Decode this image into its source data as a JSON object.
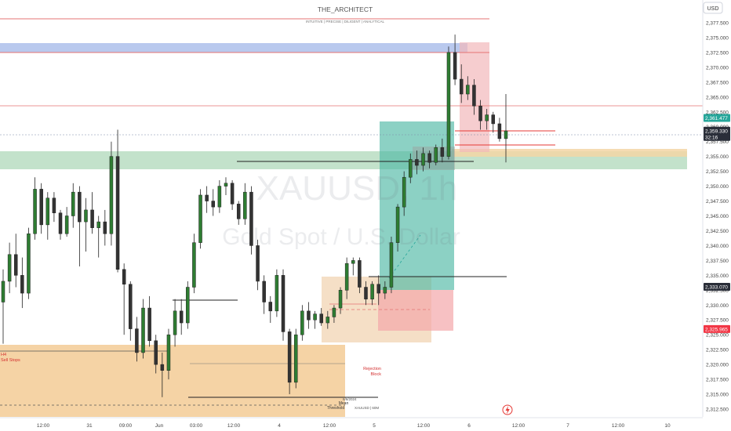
{
  "header": {
    "title": "THE_ARCHITECT",
    "subtitle": "INTUITIVE | PRECISE | DILIGENT | ANALYTICAL",
    "currency_label": "USD"
  },
  "watermark": {
    "symbol": "XAUUSD, 1h",
    "description": "Gold Spot / U.S. Dollar"
  },
  "chart_data": {
    "type": "candlestick",
    "symbol": "XAUUSD",
    "timeframe": "1h",
    "ylim": [
      2311.0,
      2381.0
    ],
    "y_ticks": [
      2312.5,
      2315.0,
      2317.5,
      2320.0,
      2322.5,
      2325.0,
      2327.5,
      2330.0,
      2332.5,
      2335.0,
      2337.5,
      2340.0,
      2342.5,
      2345.0,
      2347.5,
      2350.0,
      2352.5,
      2355.0,
      2357.5,
      2360.0,
      2362.5,
      2365.0,
      2367.5,
      2370.0,
      2372.5,
      2375.0,
      2377.5
    ],
    "y_tick_labels": [
      "2,312.500",
      "2,315.000",
      "2,317.500",
      "2,320.000",
      "2,322.500",
      "2,325.000",
      "2,327.500",
      "2,330.000",
      "2,332.500",
      "2,335.000",
      "2,337.500",
      "2,340.000",
      "2,342.500",
      "2,345.000",
      "2,347.500",
      "2,350.000",
      "2,352.500",
      "2,355.000",
      "2,357.500",
      "2,360.000",
      "2,362.500",
      "2,365.000",
      "2,367.500",
      "2,370.000",
      "2,372.500",
      "2,375.000",
      "2,377.500"
    ],
    "x_labels": [
      "12:00",
      "31",
      "09:00",
      "Jun",
      "03:00",
      "12:00",
      "4",
      "12:00",
      "5",
      "12:00",
      "6",
      "12:00",
      "7",
      "12:00",
      "10"
    ],
    "price_tags": [
      {
        "value": 2361.477,
        "label": "2,361.477",
        "color": "#26a69a"
      },
      {
        "value": 2359.33,
        "label": "2,359.330",
        "sub": "32:16",
        "color": "#2a2e39"
      },
      {
        "value": 2333.07,
        "label": "2,333.070",
        "color": "#2a2e39"
      },
      {
        "value": 2325.965,
        "label": "2,325.965",
        "color": "#f23645"
      }
    ],
    "annotations": [
      "H4",
      "Sell Stops",
      "Rejection",
      "Block",
      "6/6/2024",
      "Mean",
      "Threshold",
      "XAUUSD | 60M"
    ],
    "colors": {
      "up": "#26a69a",
      "down": "#333333",
      "alt_up": "#2e7d32"
    },
    "candles": [
      {
        "o": 2330.5,
        "h": 2336.0,
        "l": 2323.5,
        "c": 2334.0
      },
      {
        "o": 2334.0,
        "h": 2340.5,
        "l": 2332.0,
        "c": 2338.5
      },
      {
        "o": 2338.5,
        "h": 2342.0,
        "l": 2333.0,
        "c": 2335.0
      },
      {
        "o": 2335.0,
        "h": 2338.0,
        "l": 2329.5,
        "c": 2332.0
      },
      {
        "o": 2332.0,
        "h": 2343.0,
        "l": 2331.0,
        "c": 2342.0
      },
      {
        "o": 2342.0,
        "h": 2351.5,
        "l": 2341.0,
        "c": 2349.5
      },
      {
        "o": 2349.5,
        "h": 2350.5,
        "l": 2342.0,
        "c": 2343.5
      },
      {
        "o": 2343.5,
        "h": 2349.0,
        "l": 2341.0,
        "c": 2348.0
      },
      {
        "o": 2348.0,
        "h": 2349.0,
        "l": 2344.0,
        "c": 2345.5
      },
      {
        "o": 2345.5,
        "h": 2346.0,
        "l": 2341.0,
        "c": 2342.0
      },
      {
        "o": 2342.0,
        "h": 2346.5,
        "l": 2341.5,
        "c": 2345.0
      },
      {
        "o": 2345.0,
        "h": 2350.5,
        "l": 2343.0,
        "c": 2349.0
      },
      {
        "o": 2349.0,
        "h": 2350.0,
        "l": 2336.5,
        "c": 2344.0
      },
      {
        "o": 2344.0,
        "h": 2348.0,
        "l": 2339.0,
        "c": 2346.0
      },
      {
        "o": 2346.0,
        "h": 2349.0,
        "l": 2342.0,
        "c": 2343.0
      },
      {
        "o": 2343.0,
        "h": 2345.0,
        "l": 2338.0,
        "c": 2344.0
      },
      {
        "o": 2344.0,
        "h": 2346.0,
        "l": 2340.0,
        "c": 2342.0
      },
      {
        "o": 2342.0,
        "h": 2357.5,
        "l": 2340.0,
        "c": 2355.0
      },
      {
        "o": 2355.0,
        "h": 2359.5,
        "l": 2335.5,
        "c": 2336.0
      },
      {
        "o": 2336.0,
        "h": 2337.0,
        "l": 2325.0,
        "c": 2333.5
      },
      {
        "o": 2333.5,
        "h": 2334.0,
        "l": 2324.0,
        "c": 2326.0
      },
      {
        "o": 2326.0,
        "h": 2328.0,
        "l": 2320.5,
        "c": 2322.0
      },
      {
        "o": 2322.0,
        "h": 2331.0,
        "l": 2321.0,
        "c": 2329.5
      },
      {
        "o": 2329.5,
        "h": 2331.5,
        "l": 2323.0,
        "c": 2324.0
      },
      {
        "o": 2324.0,
        "h": 2325.0,
        "l": 2318.5,
        "c": 2320.0
      },
      {
        "o": 2320.0,
        "h": 2322.0,
        "l": 2314.5,
        "c": 2319.0
      },
      {
        "o": 2319.0,
        "h": 2326.0,
        "l": 2317.5,
        "c": 2325.0
      },
      {
        "o": 2325.0,
        "h": 2331.0,
        "l": 2323.0,
        "c": 2329.0
      },
      {
        "o": 2329.0,
        "h": 2331.0,
        "l": 2325.0,
        "c": 2327.0
      },
      {
        "o": 2327.0,
        "h": 2334.0,
        "l": 2326.0,
        "c": 2333.0
      },
      {
        "o": 2333.0,
        "h": 2342.0,
        "l": 2332.0,
        "c": 2340.5
      },
      {
        "o": 2340.5,
        "h": 2349.5,
        "l": 2339.5,
        "c": 2348.5
      },
      {
        "o": 2348.5,
        "h": 2350.0,
        "l": 2345.5,
        "c": 2347.5
      },
      {
        "o": 2347.5,
        "h": 2349.5,
        "l": 2345.0,
        "c": 2346.5
      },
      {
        "o": 2346.5,
        "h": 2351.0,
        "l": 2345.5,
        "c": 2350.0
      },
      {
        "o": 2350.0,
        "h": 2351.5,
        "l": 2348.5,
        "c": 2350.5
      },
      {
        "o": 2350.5,
        "h": 2351.0,
        "l": 2346.0,
        "c": 2347.0
      },
      {
        "o": 2347.0,
        "h": 2347.5,
        "l": 2343.5,
        "c": 2344.5
      },
      {
        "o": 2344.5,
        "h": 2350.5,
        "l": 2343.5,
        "c": 2349.0
      },
      {
        "o": 2349.0,
        "h": 2350.0,
        "l": 2338.5,
        "c": 2340.0
      },
      {
        "o": 2340.0,
        "h": 2341.0,
        "l": 2332.5,
        "c": 2334.0
      },
      {
        "o": 2334.0,
        "h": 2335.0,
        "l": 2328.5,
        "c": 2330.5
      },
      {
        "o": 2330.5,
        "h": 2331.5,
        "l": 2327.0,
        "c": 2329.0
      },
      {
        "o": 2329.0,
        "h": 2336.0,
        "l": 2328.0,
        "c": 2335.0
      },
      {
        "o": 2335.0,
        "h": 2336.0,
        "l": 2324.0,
        "c": 2325.5
      },
      {
        "o": 2325.5,
        "h": 2326.0,
        "l": 2315.0,
        "c": 2317.0
      },
      {
        "o": 2317.0,
        "h": 2326.0,
        "l": 2316.0,
        "c": 2325.0
      },
      {
        "o": 2325.0,
        "h": 2330.0,
        "l": 2324.0,
        "c": 2329.0
      },
      {
        "o": 2329.0,
        "h": 2330.5,
        "l": 2326.0,
        "c": 2327.5
      },
      {
        "o": 2327.5,
        "h": 2329.0,
        "l": 2326.0,
        "c": 2328.5
      },
      {
        "o": 2328.5,
        "h": 2329.5,
        "l": 2326.5,
        "c": 2327.0
      },
      {
        "o": 2327.0,
        "h": 2329.0,
        "l": 2326.0,
        "c": 2328.0
      },
      {
        "o": 2328.0,
        "h": 2330.0,
        "l": 2327.0,
        "c": 2329.5
      },
      {
        "o": 2329.5,
        "h": 2333.0,
        "l": 2328.5,
        "c": 2332.5
      },
      {
        "o": 2332.5,
        "h": 2338.0,
        "l": 2331.0,
        "c": 2337.0
      },
      {
        "o": 2337.0,
        "h": 2338.0,
        "l": 2335.0,
        "c": 2337.5
      },
      {
        "o": 2337.5,
        "h": 2338.0,
        "l": 2332.0,
        "c": 2333.0
      },
      {
        "o": 2333.0,
        "h": 2334.0,
        "l": 2330.0,
        "c": 2331.0
      },
      {
        "o": 2331.0,
        "h": 2334.0,
        "l": 2330.0,
        "c": 2333.5
      },
      {
        "o": 2333.5,
        "h": 2335.0,
        "l": 2330.0,
        "c": 2332.0
      },
      {
        "o": 2332.0,
        "h": 2334.0,
        "l": 2331.0,
        "c": 2333.0
      },
      {
        "o": 2333.0,
        "h": 2341.5,
        "l": 2332.0,
        "c": 2340.5
      },
      {
        "o": 2340.5,
        "h": 2347.0,
        "l": 2339.0,
        "c": 2346.5
      },
      {
        "o": 2346.5,
        "h": 2352.5,
        "l": 2345.0,
        "c": 2351.5
      },
      {
        "o": 2351.5,
        "h": 2355.5,
        "l": 2350.5,
        "c": 2354.5
      },
      {
        "o": 2354.5,
        "h": 2356.0,
        "l": 2352.0,
        "c": 2353.5
      },
      {
        "o": 2353.5,
        "h": 2356.5,
        "l": 2352.5,
        "c": 2355.5
      },
      {
        "o": 2355.5,
        "h": 2356.0,
        "l": 2353.0,
        "c": 2354.0
      },
      {
        "o": 2354.0,
        "h": 2357.0,
        "l": 2353.5,
        "c": 2356.5
      },
      {
        "o": 2356.5,
        "h": 2358.0,
        "l": 2354.0,
        "c": 2355.0
      },
      {
        "o": 2355.0,
        "h": 2373.5,
        "l": 2354.5,
        "c": 2372.5
      },
      {
        "o": 2372.5,
        "h": 2375.5,
        "l": 2367.0,
        "c": 2368.0
      },
      {
        "o": 2368.0,
        "h": 2370.5,
        "l": 2364.0,
        "c": 2365.5
      },
      {
        "o": 2365.5,
        "h": 2368.5,
        "l": 2364.5,
        "c": 2367.0
      },
      {
        "o": 2367.0,
        "h": 2368.0,
        "l": 2362.0,
        "c": 2363.5
      },
      {
        "o": 2363.5,
        "h": 2364.5,
        "l": 2359.5,
        "c": 2361.0
      },
      {
        "o": 2361.0,
        "h": 2363.0,
        "l": 2359.5,
        "c": 2362.0
      },
      {
        "o": 2362.0,
        "h": 2362.5,
        "l": 2359.0,
        "c": 2360.5
      },
      {
        "o": 2360.5,
        "h": 2361.5,
        "l": 2357.5,
        "c": 2358.0
      },
      {
        "o": 2358.0,
        "h": 2365.5,
        "l": 2354.0,
        "c": 2359.3
      }
    ]
  }
}
